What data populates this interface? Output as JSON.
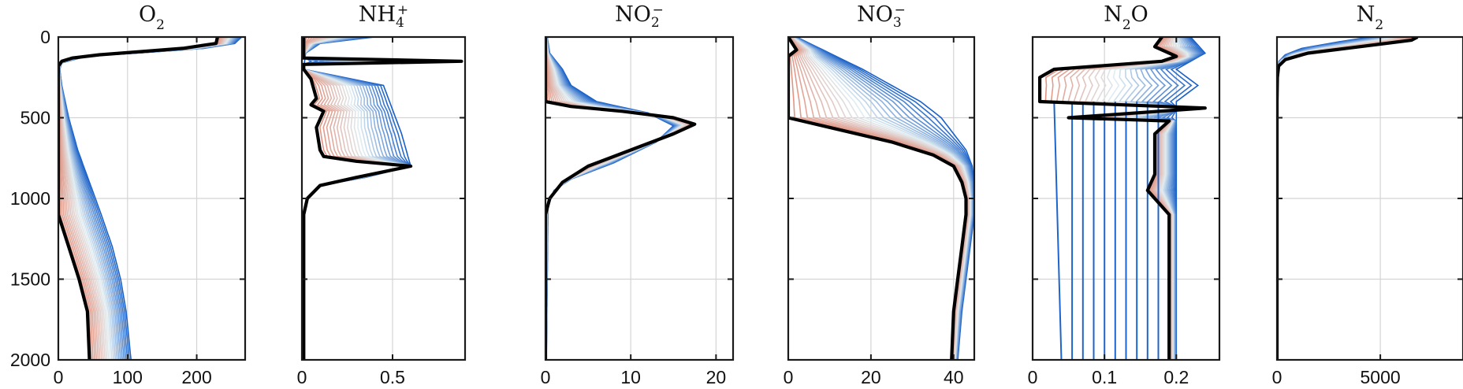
{
  "chart_data": {
    "type": "line",
    "panels": [
      {
        "title_html": "O<tspan baseline-shift=\"sub\" font-size=\"17\">2</tspan>",
        "xlim": [
          0,
          270
        ],
        "xticks": [
          0,
          100,
          200
        ],
        "xtick_labels": [
          "0",
          "100",
          "200"
        ],
        "show_yticks": true,
        "yticks": [
          0,
          500,
          1000,
          1500,
          2000
        ],
        "ytick_labels": [
          "0",
          "500",
          "1000",
          "1500",
          "2000"
        ],
        "ylim": [
          0,
          2000
        ],
        "black": [
          [
            230,
            0
          ],
          [
            228,
            40
          ],
          [
            180,
            70
          ],
          [
            120,
            90
          ],
          [
            60,
            110
          ],
          [
            20,
            130
          ],
          [
            5,
            150
          ],
          [
            0,
            180
          ],
          [
            0,
            800
          ],
          [
            0,
            1100
          ],
          [
            15,
            1300
          ],
          [
            30,
            1500
          ],
          [
            42,
            1700
          ],
          [
            45,
            2000
          ]
        ],
        "blue": [
          [
            265,
            0
          ],
          [
            255,
            40
          ],
          [
            210,
            70
          ],
          [
            130,
            95
          ],
          [
            40,
            120
          ],
          [
            5,
            160
          ],
          [
            2,
            200
          ],
          [
            5,
            300
          ],
          [
            15,
            500
          ],
          [
            28,
            700
          ],
          [
            45,
            900
          ],
          [
            62,
            1100
          ],
          [
            78,
            1300
          ],
          [
            90,
            1500
          ],
          [
            98,
            1700
          ],
          [
            105,
            2000
          ]
        ]
      },
      {
        "title_html": "NH<tspan baseline-shift=\"-7\" font-size=\"17\">4</tspan><tspan dx=\"-9\" baseline-shift=\"9\" font-size=\"17\">+</tspan>",
        "xlim": [
          0,
          0.9
        ],
        "xticks": [
          0,
          0.5
        ],
        "xtick_labels": [
          "0",
          "0.5"
        ],
        "show_yticks": false,
        "yticks": [
          0,
          500,
          1000,
          1500,
          2000
        ],
        "ylim": [
          0,
          2000
        ],
        "black": [
          [
            0.01,
            0
          ],
          [
            0.01,
            130
          ],
          [
            0.88,
            150
          ],
          [
            0.01,
            170
          ],
          [
            0.01,
            200
          ],
          [
            0.05,
            260
          ],
          [
            0.08,
            380
          ],
          [
            0.05,
            420
          ],
          [
            0.12,
            460
          ],
          [
            0.08,
            560
          ],
          [
            0.1,
            700
          ],
          [
            0.12,
            740
          ],
          [
            0.3,
            770
          ],
          [
            0.6,
            800
          ],
          [
            0.3,
            870
          ],
          [
            0.1,
            920
          ],
          [
            0.03,
            1000
          ],
          [
            0.01,
            1100
          ],
          [
            0.01,
            2000
          ]
        ],
        "blue": [
          [
            0.4,
            0
          ],
          [
            0.1,
            40
          ],
          [
            0.02,
            100
          ],
          [
            0.01,
            200
          ],
          [
            0.45,
            300
          ],
          [
            0.5,
            450
          ],
          [
            0.55,
            600
          ],
          [
            0.6,
            800
          ],
          [
            0.35,
            870
          ],
          [
            0.1,
            920
          ],
          [
            0.03,
            1000
          ],
          [
            0.01,
            1100
          ],
          [
            0.01,
            2000
          ]
        ]
      },
      {
        "title_html": "NO<tspan baseline-shift=\"-7\" font-size=\"17\">2</tspan><tspan dx=\"-9\" baseline-shift=\"9\" font-size=\"17\">−</tspan>",
        "xlim": [
          0,
          22
        ],
        "xticks": [
          0,
          10,
          20
        ],
        "xtick_labels": [
          "0",
          "10",
          "20"
        ],
        "show_yticks": false,
        "yticks": [
          0,
          500,
          1000,
          1500,
          2000
        ],
        "ylim": [
          0,
          2000
        ],
        "black": [
          [
            0,
            0
          ],
          [
            0,
            400
          ],
          [
            3,
            430
          ],
          [
            9,
            460
          ],
          [
            15,
            500
          ],
          [
            17.5,
            540
          ],
          [
            15,
            600
          ],
          [
            10,
            700
          ],
          [
            5,
            800
          ],
          [
            2,
            900
          ],
          [
            0.5,
            1000
          ],
          [
            0,
            1100
          ],
          [
            0,
            2000
          ]
        ],
        "blue": [
          [
            0.2,
            0
          ],
          [
            0.5,
            100
          ],
          [
            2,
            200
          ],
          [
            3,
            300
          ],
          [
            6,
            400
          ],
          [
            12,
            470
          ],
          [
            15,
            550
          ],
          [
            13,
            650
          ],
          [
            8,
            780
          ],
          [
            3,
            880
          ],
          [
            1,
            950
          ],
          [
            0.3,
            1050
          ],
          [
            0.1,
            2000
          ]
        ]
      },
      {
        "title_html": "NO<tspan baseline-shift=\"-7\" font-size=\"17\">3</tspan><tspan dx=\"-9\" baseline-shift=\"9\" font-size=\"17\">−</tspan>",
        "xlim": [
          0,
          45
        ],
        "xticks": [
          0,
          20,
          40
        ],
        "xtick_labels": [
          "0",
          "20",
          "40"
        ],
        "show_yticks": false,
        "yticks": [
          0,
          500,
          1000,
          1500,
          2000
        ],
        "ylim": [
          0,
          2000
        ],
        "black": [
          [
            0,
            0
          ],
          [
            2,
            80
          ],
          [
            0,
            120
          ],
          [
            0,
            500
          ],
          [
            10,
            560
          ],
          [
            25,
            650
          ],
          [
            35,
            730
          ],
          [
            40,
            800
          ],
          [
            42,
            900
          ],
          [
            43,
            1000
          ],
          [
            43,
            1100
          ],
          [
            42,
            1300
          ],
          [
            41,
            1500
          ],
          [
            40,
            1700
          ],
          [
            39.5,
            2000
          ]
        ],
        "blue": [
          [
            2,
            0
          ],
          [
            10,
            100
          ],
          [
            18,
            200
          ],
          [
            25,
            300
          ],
          [
            32,
            400
          ],
          [
            37,
            500
          ],
          [
            40,
            600
          ],
          [
            43,
            700
          ],
          [
            44.5,
            800
          ],
          [
            45,
            900
          ],
          [
            45,
            1100
          ],
          [
            44,
            1300
          ],
          [
            43,
            1500
          ],
          [
            42,
            1700
          ],
          [
            41,
            2000
          ]
        ]
      },
      {
        "title_html": "N<tspan baseline-shift=\"sub\" font-size=\"17\">2</tspan>O",
        "xlim": [
          0,
          0.26
        ],
        "xticks": [
          0,
          0.1,
          0.2
        ],
        "xtick_labels": [
          "0",
          "0.1",
          "0.2"
        ],
        "show_yticks": false,
        "yticks": [
          0,
          500,
          1000,
          1500,
          2000
        ],
        "ylim": [
          0,
          2000
        ],
        "black": [
          [
            0.18,
            0
          ],
          [
            0.17,
            60
          ],
          [
            0.2,
            120
          ],
          [
            0.18,
            150
          ],
          [
            0.03,
            200
          ],
          [
            0.01,
            250
          ],
          [
            0.01,
            400
          ],
          [
            0.24,
            440
          ],
          [
            0.05,
            500
          ],
          [
            0.19,
            520
          ],
          [
            0.17,
            600
          ],
          [
            0.17,
            850
          ],
          [
            0.16,
            950
          ],
          [
            0.19,
            1100
          ],
          [
            0.19,
            2000
          ]
        ],
        "blue": [
          [
            0.22,
            0
          ],
          [
            0.24,
            100
          ],
          [
            0.2,
            200
          ],
          [
            0.23,
            300
          ],
          [
            0.2,
            400
          ],
          [
            0.2,
            600
          ],
          [
            0.2,
            800
          ],
          [
            0.2,
            1000
          ],
          [
            0.2,
            1200
          ],
          [
            0.2,
            1500
          ],
          [
            0.2,
            2000
          ]
        ],
        "verticals": [
          [
            0.03,
            0.04
          ],
          [
            0.055,
            0.055
          ],
          [
            0.07,
            0.07
          ],
          [
            0.085,
            0.085
          ],
          [
            0.1,
            0.1
          ],
          [
            0.115,
            0.115
          ],
          [
            0.13,
            0.13
          ],
          [
            0.145,
            0.145
          ],
          [
            0.16,
            0.16
          ],
          [
            0.175,
            0.175
          ]
        ]
      },
      {
        "title_html": "N<tspan baseline-shift=\"sub\" font-size=\"17\">2</tspan>",
        "xlim": [
          0,
          9000
        ],
        "xticks": [
          0,
          5000
        ],
        "xtick_labels": [
          "0",
          "5000"
        ],
        "show_yticks": false,
        "yticks": [
          0,
          500,
          1000,
          1500,
          2000
        ],
        "ylim": [
          0,
          2000
        ],
        "black": [
          [
            6800,
            0
          ],
          [
            6500,
            20
          ],
          [
            4000,
            60
          ],
          [
            1500,
            100
          ],
          [
            400,
            140
          ],
          [
            80,
            180
          ],
          [
            20,
            250
          ],
          [
            0,
            400
          ],
          [
            0,
            2000
          ]
        ],
        "blue": [
          [
            4500,
            0
          ],
          [
            3000,
            30
          ],
          [
            1200,
            70
          ],
          [
            400,
            110
          ],
          [
            100,
            150
          ],
          [
            30,
            200
          ],
          [
            0,
            400
          ],
          [
            0,
            2000
          ]
        ]
      }
    ]
  }
}
